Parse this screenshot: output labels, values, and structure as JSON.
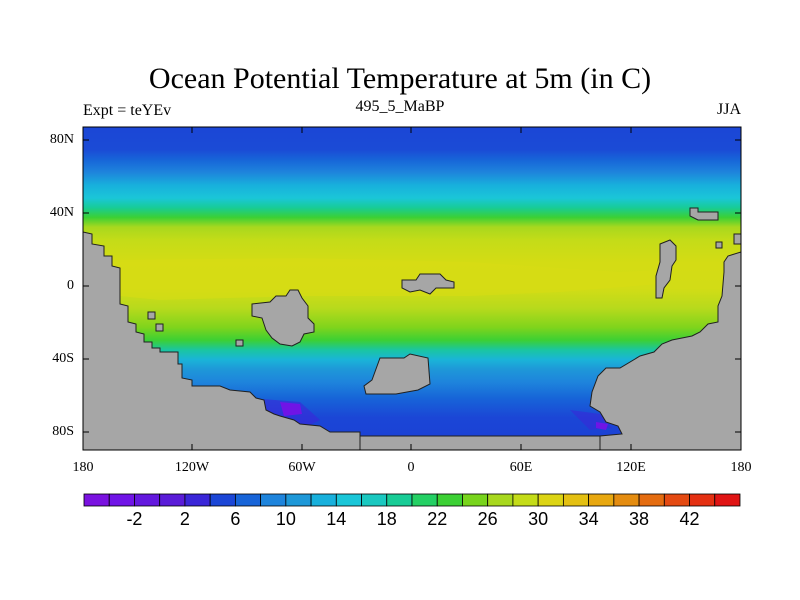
{
  "title": "Ocean Potential Temperature at 5m (in C)",
  "subtitle_left": "Expt = teYEv",
  "subtitle_center": "495_5_MaBP",
  "subtitle_right": "JJA",
  "y_axis_labels": [
    "80N",
    "40N",
    "0",
    "40S",
    "80S"
  ],
  "x_axis_labels": [
    "180",
    "120W",
    "60W",
    "0",
    "60E",
    "120E",
    "180"
  ],
  "colorbar": {
    "labels": [
      "-2",
      "2",
      "6",
      "10",
      "14",
      "18",
      "22",
      "26",
      "30",
      "34",
      "38",
      "42"
    ],
    "colors": [
      "#7a12e0",
      "#7014e6",
      "#6318de",
      "#5a1cd8",
      "#3a26d8",
      "#1b46d6",
      "#1764d8",
      "#1e84dc",
      "#1e98d8",
      "#18b0dc",
      "#1ac6d8",
      "#1ac8c0",
      "#18cc96",
      "#24d064",
      "#3cd034",
      "#78d41c",
      "#a8d81e",
      "#c4dc18",
      "#dcd414",
      "#e4c012",
      "#e8a810",
      "#e48c10",
      "#e46c10",
      "#e44a12",
      "#e43012",
      "#e01414"
    ]
  },
  "colors": {
    "land": "#a6a6a6",
    "coast": "#202020"
  }
}
